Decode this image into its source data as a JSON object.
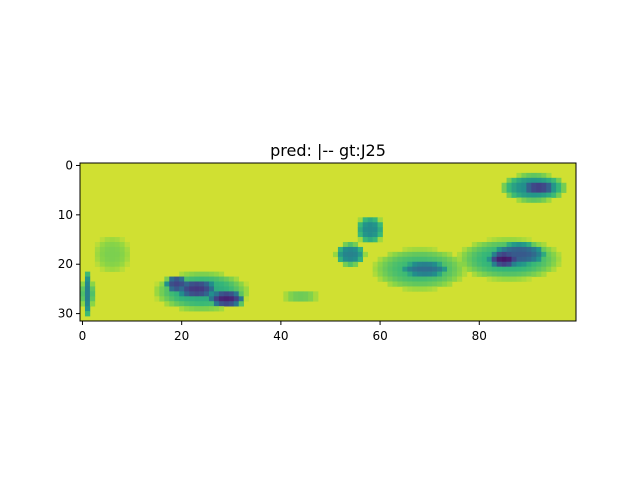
{
  "chart_data": {
    "type": "heatmap",
    "title": "pred: |-- gt:J25",
    "xlabel": "",
    "ylabel": "",
    "x_range": [
      -0.5,
      99.5
    ],
    "y_range": [
      31.5,
      -0.5
    ],
    "x_ticks": [
      0,
      20,
      40,
      60,
      80
    ],
    "y_ticks": [
      0,
      10,
      20,
      30
    ],
    "grid": false,
    "colormap": "viridis",
    "background_value": 0.95,
    "blobs": [
      {
        "cx": 19,
        "cy": 24,
        "rx": 2.5,
        "ry": 2,
        "v": 0.25
      },
      {
        "cx": 23,
        "cy": 25,
        "rx": 4.5,
        "ry": 2.2,
        "v": 0.2
      },
      {
        "cx": 29,
        "cy": 27,
        "rx": 4,
        "ry": 1.8,
        "v": 0.12
      },
      {
        "cx": 24,
        "cy": 25.5,
        "rx": 10,
        "ry": 4.2,
        "v": 0.7
      },
      {
        "cx": 1,
        "cy": 26,
        "rx": 1.2,
        "ry": 5,
        "v": 0.55
      },
      {
        "cx": 54,
        "cy": 18,
        "rx": 3.2,
        "ry": 2.4,
        "v": 0.55
      },
      {
        "cx": 58,
        "cy": 13,
        "rx": 3,
        "ry": 3,
        "v": 0.6
      },
      {
        "cx": 69,
        "cy": 21,
        "rx": 5.5,
        "ry": 1.8,
        "v": 0.45
      },
      {
        "cx": 68,
        "cy": 21,
        "rx": 10,
        "ry": 4.5,
        "v": 0.75
      },
      {
        "cx": 85,
        "cy": 19,
        "rx": 3.5,
        "ry": 1.8,
        "v": 0.08
      },
      {
        "cx": 88,
        "cy": 18,
        "rx": 6,
        "ry": 2.6,
        "v": 0.35
      },
      {
        "cx": 86,
        "cy": 19,
        "rx": 11,
        "ry": 4.5,
        "v": 0.72
      },
      {
        "cx": 92,
        "cy": 4.5,
        "rx": 4,
        "ry": 1.4,
        "v": 0.2
      },
      {
        "cx": 91,
        "cy": 4.5,
        "rx": 7,
        "ry": 3,
        "v": 0.6
      },
      {
        "cx": 44,
        "cy": 26.5,
        "rx": 4,
        "ry": 1.2,
        "v": 0.82
      },
      {
        "cx": 6,
        "cy": 18,
        "rx": 4,
        "ry": 4,
        "v": 0.85
      }
    ]
  }
}
